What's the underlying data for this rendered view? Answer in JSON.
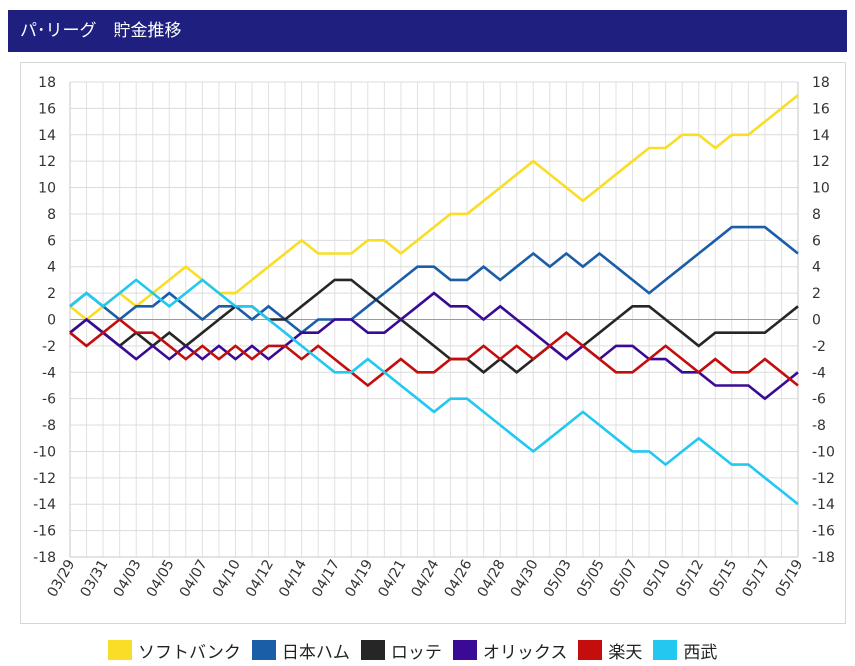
{
  "header": {
    "title": "パ･リーグ　貯金推移"
  },
  "chart_data": {
    "type": "line",
    "title": "パ･リーグ　貯金推移",
    "ylim": [
      -18,
      18
    ],
    "ytick_step": 2,
    "grid": true,
    "legend_position": "bottom",
    "x_tick_labels": [
      "03/29",
      "03/31",
      "04/03",
      "04/05",
      "04/07",
      "04/10",
      "04/12",
      "04/14",
      "04/17",
      "04/19",
      "04/21",
      "04/24",
      "04/26",
      "04/28",
      "04/30",
      "05/03",
      "05/05",
      "05/07",
      "05/10",
      "05/12",
      "05/15",
      "05/17",
      "05/19"
    ],
    "series": [
      {
        "name": "ソフトバンク",
        "color": "#f9dd26",
        "values": [
          1,
          0,
          1,
          2,
          1,
          2,
          3,
          4,
          3,
          2,
          2,
          3,
          4,
          5,
          6,
          5,
          5,
          5,
          6,
          6,
          5,
          6,
          7,
          8,
          8,
          9,
          10,
          11,
          12,
          11,
          10,
          9,
          10,
          11,
          12,
          13,
          13,
          14,
          14,
          13,
          14,
          14,
          15,
          16,
          17
        ]
      },
      {
        "name": "日本ハム",
        "color": "#1a5ea8",
        "values": [
          1,
          2,
          1,
          0,
          1,
          1,
          2,
          1,
          0,
          1,
          1,
          0,
          1,
          0,
          -1,
          0,
          0,
          0,
          1,
          2,
          3,
          4,
          4,
          3,
          3,
          4,
          3,
          4,
          5,
          4,
          5,
          4,
          5,
          4,
          3,
          2,
          3,
          4,
          5,
          6,
          7,
          7,
          7,
          6,
          5
        ]
      },
      {
        "name": "ロッテ",
        "color": "#262626",
        "values": [
          -1,
          0,
          -1,
          -2,
          -1,
          -2,
          -1,
          -2,
          -1,
          0,
          1,
          1,
          0,
          0,
          1,
          2,
          3,
          3,
          2,
          1,
          0,
          -1,
          -2,
          -3,
          -3,
          -4,
          -3,
          -4,
          -3,
          -2,
          -3,
          -2,
          -1,
          0,
          1,
          1,
          0,
          -1,
          -2,
          -1,
          -1,
          -1,
          -1,
          0,
          1
        ]
      },
      {
        "name": "オリックス",
        "color": "#3a0a96",
        "values": [
          -1,
          0,
          -1,
          -2,
          -3,
          -2,
          -3,
          -2,
          -3,
          -2,
          -3,
          -2,
          -3,
          -2,
          -1,
          -1,
          0,
          0,
          -1,
          -1,
          0,
          1,
          2,
          1,
          1,
          0,
          1,
          0,
          -1,
          -2,
          -3,
          -2,
          -3,
          -2,
          -2,
          -3,
          -3,
          -4,
          -4,
          -5,
          -5,
          -5,
          -6,
          -5,
          -4
        ]
      },
      {
        "name": "楽天",
        "color": "#c40d0d",
        "values": [
          -1,
          -2,
          -1,
          0,
          -1,
          -1,
          -2,
          -3,
          -2,
          -3,
          -2,
          -3,
          -2,
          -2,
          -3,
          -2,
          -3,
          -4,
          -5,
          -4,
          -3,
          -4,
          -4,
          -3,
          -3,
          -2,
          -3,
          -2,
          -3,
          -2,
          -1,
          -2,
          -3,
          -4,
          -4,
          -3,
          -2,
          -3,
          -4,
          -3,
          -4,
          -4,
          -3,
          -4,
          -5
        ]
      },
      {
        "name": "西武",
        "color": "#23c8f0",
        "values": [
          1,
          2,
          1,
          2,
          3,
          2,
          1,
          2,
          3,
          2,
          1,
          1,
          0,
          -1,
          -2,
          -3,
          -4,
          -4,
          -3,
          -4,
          -5,
          -6,
          -7,
          -6,
          -6,
          -7,
          -8,
          -9,
          -10,
          -9,
          -8,
          -7,
          -8,
          -9,
          -10,
          -10,
          -11,
          -10,
          -9,
          -10,
          -11,
          -11,
          -12,
          -13,
          -14
        ]
      }
    ]
  }
}
